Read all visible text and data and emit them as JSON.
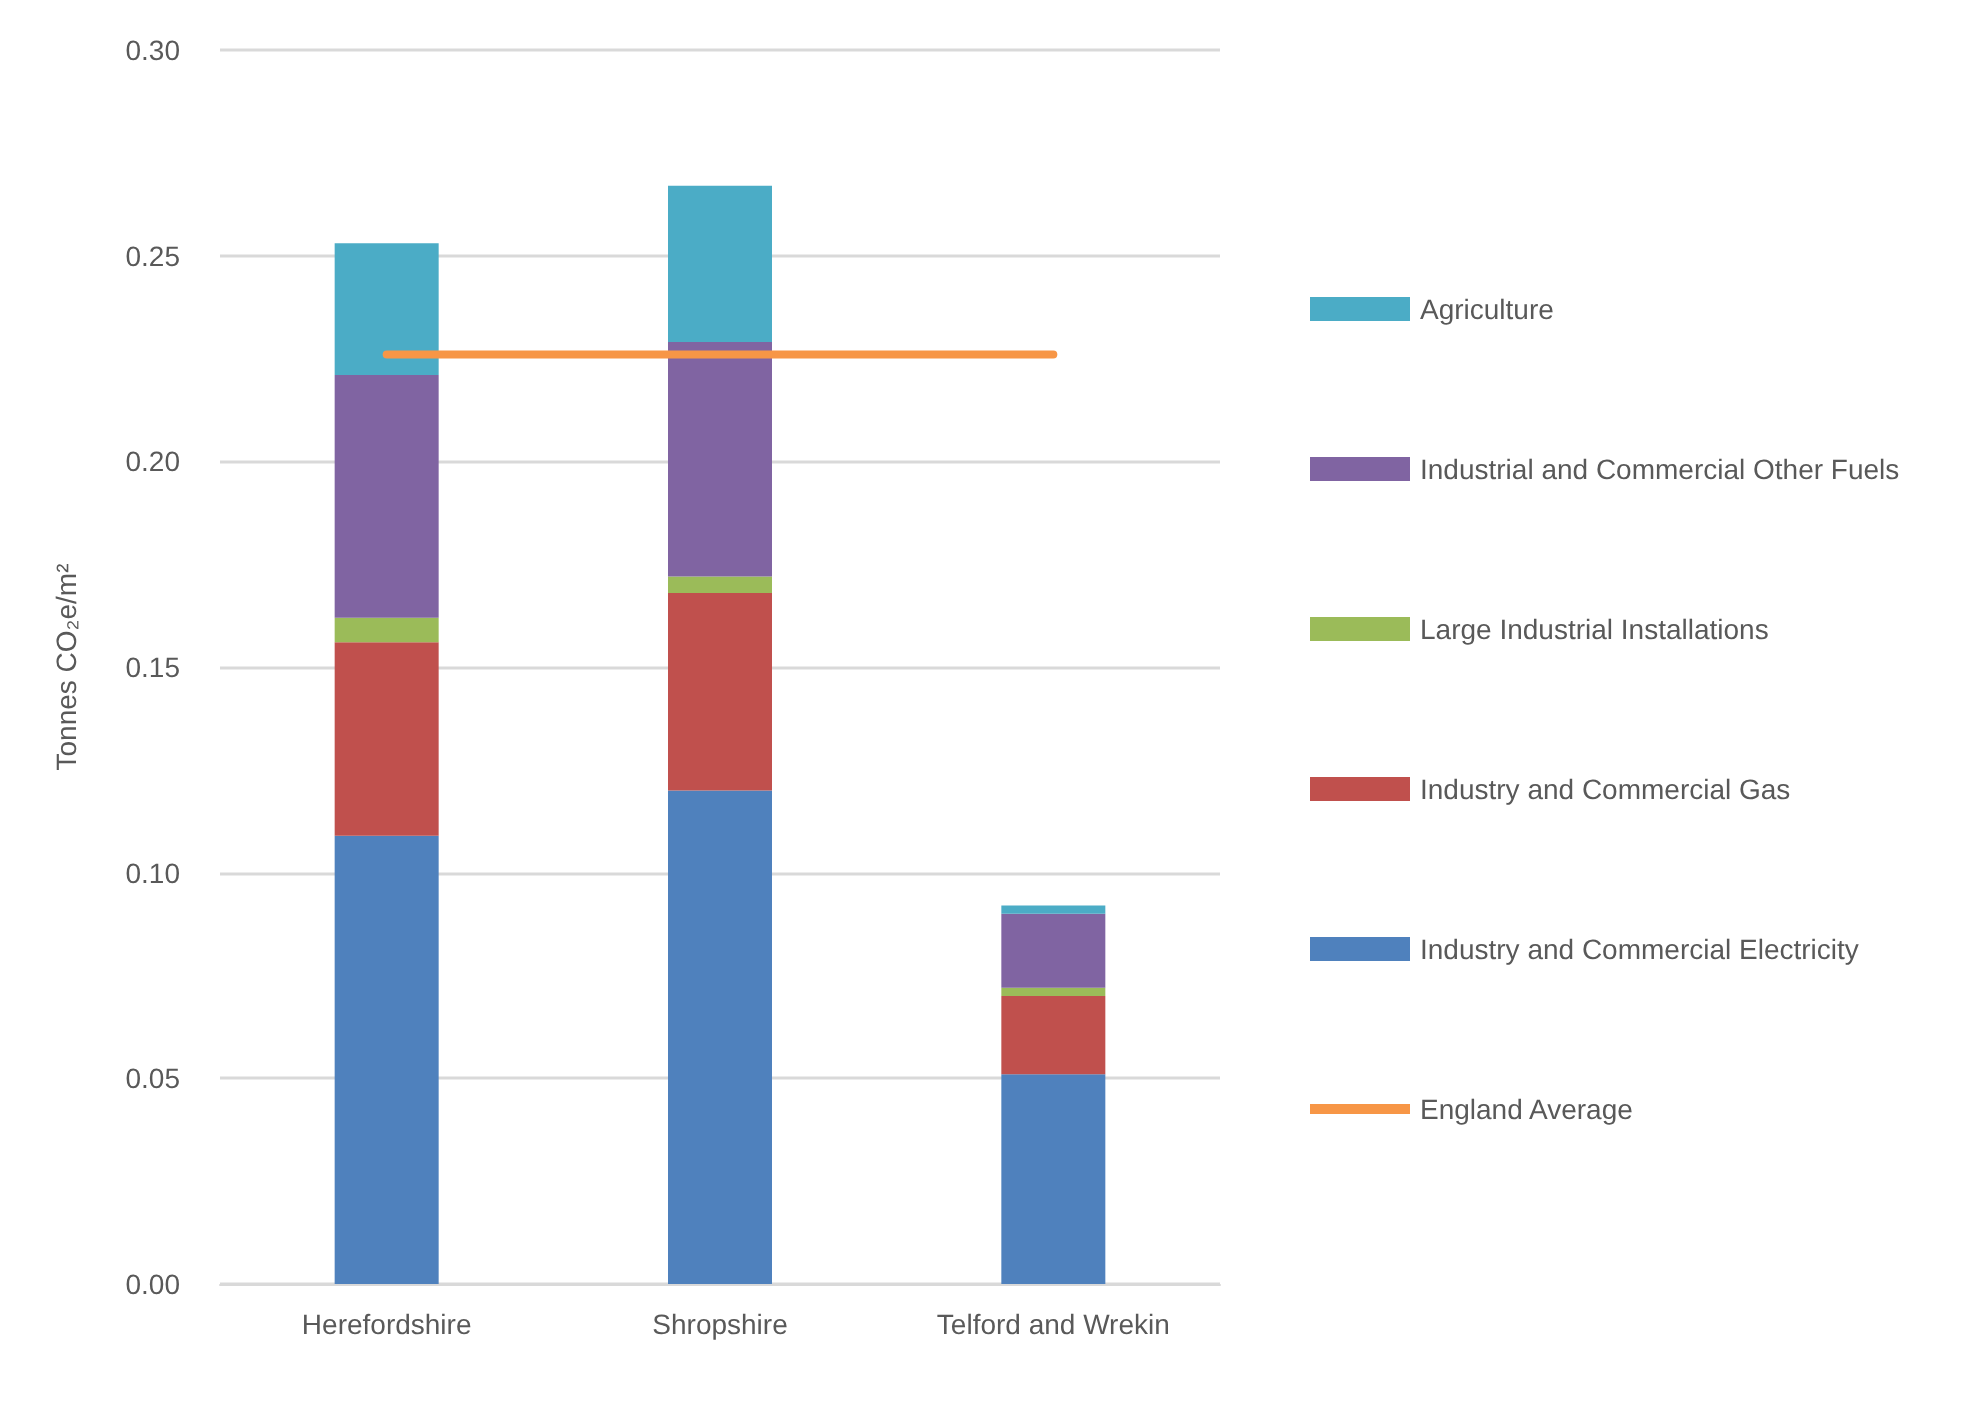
{
  "chart_data": {
    "type": "bar",
    "ylabel": "Tonnes CO₂e/m²",
    "categories": [
      "Herefordshire",
      "Shropshire",
      "Telford and Wrekin"
    ],
    "stacked": true,
    "ylim": [
      0,
      0.3
    ],
    "yticks": [
      {
        "value": 0,
        "label": "0.00"
      },
      {
        "value": 0.05,
        "label": "0.05"
      },
      {
        "value": 0.1,
        "label": "0.10"
      },
      {
        "value": 0.15,
        "label": "0.15"
      },
      {
        "value": 0.2,
        "label": "0.20"
      },
      {
        "value": 0.25,
        "label": "0.25"
      },
      {
        "value": 0.3,
        "label": "0.30"
      }
    ],
    "grid": "y",
    "legend": "right",
    "marker": "none",
    "series": [
      {
        "name": "Industry and Commercial Electricity",
        "color": "#4f81bd",
        "values": [
          0.109,
          0.12,
          0.051
        ]
      },
      {
        "name": "Industry and Commercial Gas",
        "color": "#c0504d",
        "values": [
          0.047,
          0.048,
          0.019
        ]
      },
      {
        "name": "Large Industrial Installations",
        "color": "#9bbb59",
        "values": [
          0.006,
          0.004,
          0.002
        ]
      },
      {
        "name": "Industrial and Commercial Other Fuels",
        "color": "#8064a2",
        "values": [
          0.059,
          0.057,
          0.018
        ]
      },
      {
        "name": "Agriculture",
        "color": "#4bacc6",
        "values": [
          0.032,
          0.038,
          0.002
        ]
      },
      {
        "name": "England Average",
        "type": "line",
        "color": "#f79646",
        "values": [
          0.226,
          0.226,
          0.226
        ]
      }
    ]
  }
}
